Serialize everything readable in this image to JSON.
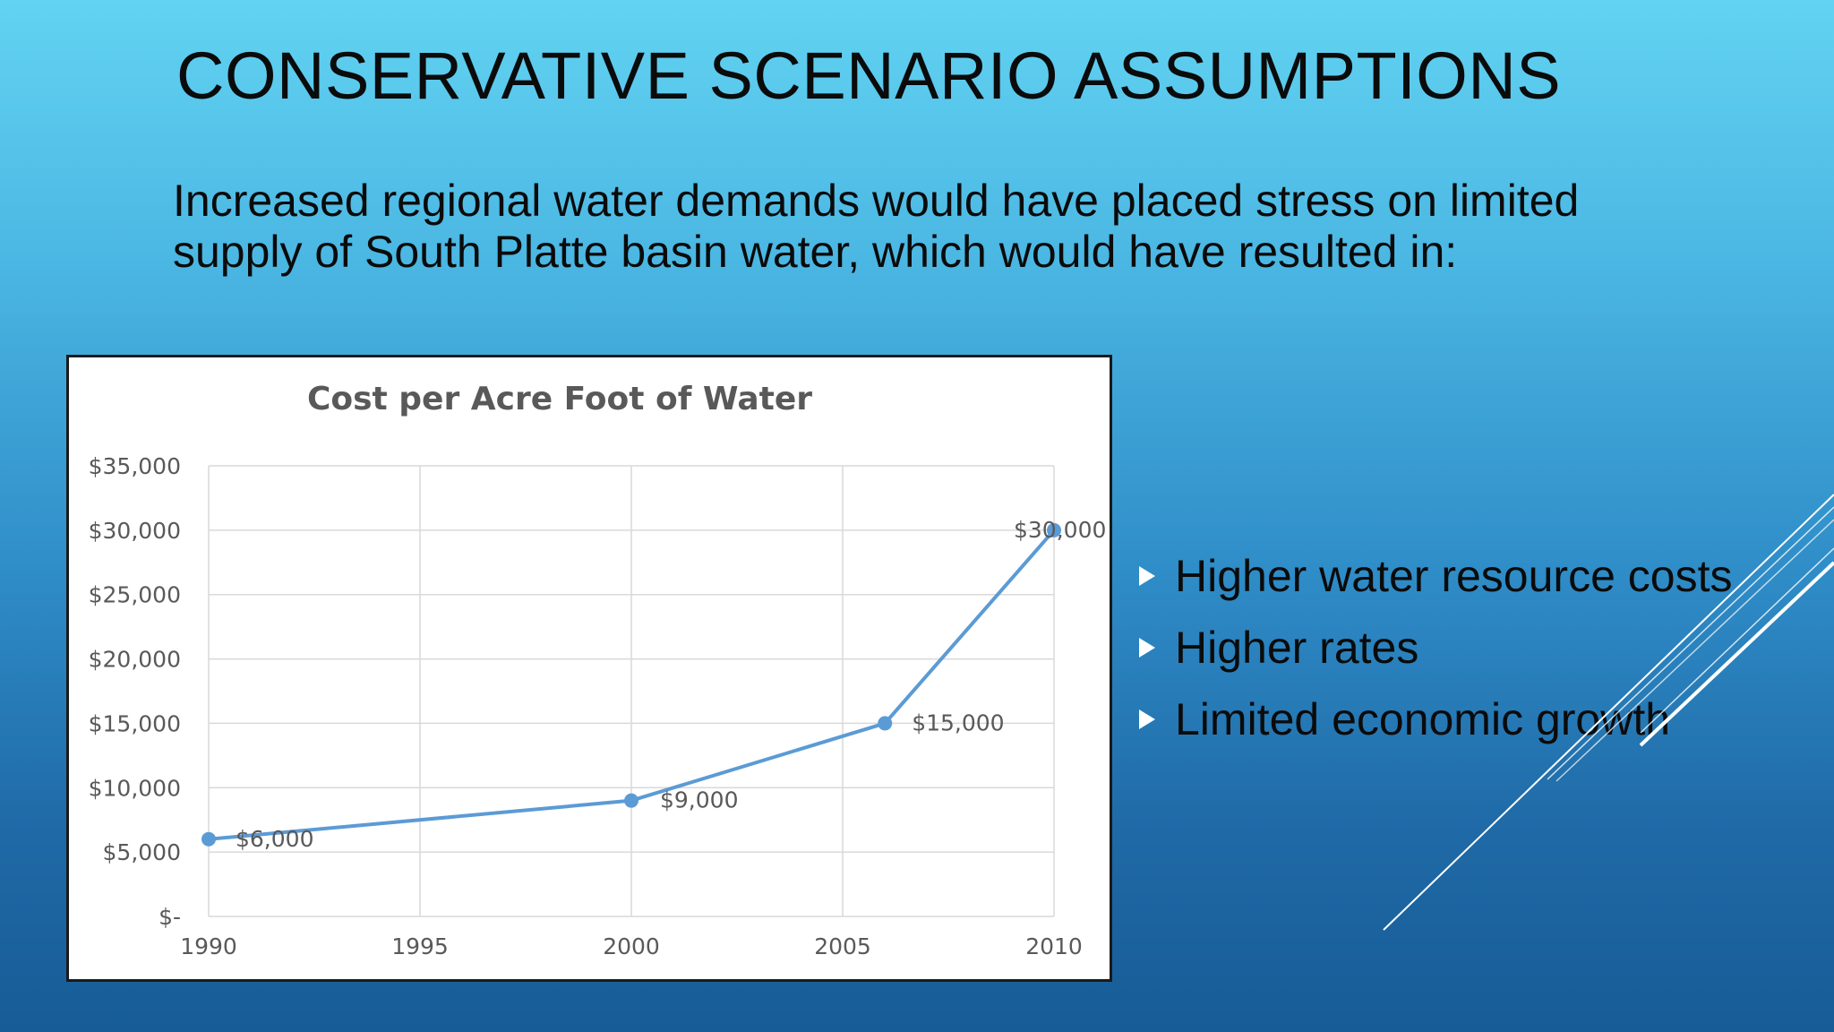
{
  "slide": {
    "title": "CONSERVATIVE SCENARIO ASSUMPTIONS",
    "subtitle_line1": "Increased regional water demands would have placed stress on limited",
    "subtitle_line2": "supply of South Platte basin water, which would have resulted in:",
    "bullets": [
      "Higher water resource costs",
      "Higher rates",
      "Limited economic growth"
    ]
  },
  "chart_data": {
    "type": "scatter",
    "title": "Cost per Acre Foot of Water",
    "xlabel": "",
    "ylabel": "",
    "xlim": [
      1990,
      2010
    ],
    "ylim": [
      0,
      35000
    ],
    "x_ticks": [
      1990,
      1995,
      2000,
      2005,
      2010
    ],
    "y_ticks": [
      0,
      5000,
      10000,
      15000,
      20000,
      25000,
      30000,
      35000
    ],
    "y_tick_labels": [
      "$-",
      "$5,000",
      "$10,000",
      "$15,000",
      "$20,000",
      "$25,000",
      "$30,000",
      "$35,000"
    ],
    "grid": true,
    "legend": "none",
    "series": [
      {
        "points": [
          {
            "x": 1990,
            "y": 6000,
            "label": "$6,000"
          },
          {
            "x": 2000,
            "y": 9000,
            "label": "$9,000"
          },
          {
            "x": 2006,
            "y": 15000,
            "label": "$15,000"
          },
          {
            "x": 2010,
            "y": 30000,
            "label": "$30,000"
          }
        ],
        "color": "#5b9bd5"
      }
    ]
  },
  "colors": {
    "series": "#5b9bd5",
    "grid": "#d9d9d9",
    "axis_text": "#595959",
    "bullet_marker": "#ffffff"
  }
}
